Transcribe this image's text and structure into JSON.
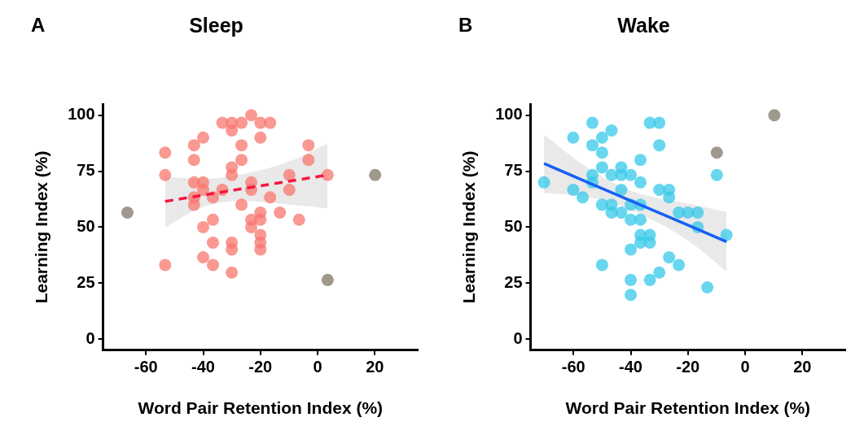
{
  "chart_data": [
    {
      "type": "scatter",
      "title": "Sleep",
      "annotations": [
        "A"
      ],
      "xlabel": "Word Pair Retention Index (%)",
      "ylabel": "Learning Index (%)",
      "xlim": [
        -75,
        35
      ],
      "xticks": [
        -60,
        -40,
        -20,
        0,
        20
      ],
      "ylim": [
        -5,
        105
      ],
      "yticks": [
        0,
        25,
        50,
        75,
        100
      ],
      "grid": false,
      "legend": false,
      "series": [
        {
          "marker": "circle",
          "color": "#f8766d",
          "x": [
            -53.3,
            -53.3,
            -53.3,
            -43.2,
            -43.2,
            -43.2,
            -43.2,
            -43.2,
            -40,
            -40,
            -40,
            -40,
            -40,
            -36.6,
            -36.6,
            -36.6,
            -36.6,
            -33.3,
            -33.3,
            -30,
            -30,
            -30,
            -30,
            -30,
            -30,
            -30,
            -26.6,
            -26.6,
            -26.6,
            -26.6,
            -23.2,
            -23.2,
            -23.2,
            -23.2,
            -23.2,
            -20,
            -20,
            -20,
            -20,
            -20,
            -20,
            -20,
            -16.6,
            -16.6,
            -13.2,
            -9.9,
            -9.9,
            -6.5,
            -3.2,
            -3.2,
            3.5
          ],
          "values": [
            83.3,
            73.3,
            33.1,
            86.6,
            80,
            70,
            63.3,
            60,
            90,
            70,
            66.7,
            50,
            36.5,
            63.3,
            53.3,
            43.1,
            33.1,
            96.6,
            66.7,
            96.6,
            93.2,
            76.7,
            73.3,
            43.1,
            40,
            29.7,
            96.6,
            86.6,
            80,
            60,
            100,
            70,
            66.7,
            53.3,
            50,
            96.6,
            90,
            56.5,
            53.3,
            46.5,
            43.1,
            40,
            96.6,
            63.3,
            56.5,
            73.3,
            66.7,
            53.3,
            86.6,
            80,
            73.3
          ]
        },
        {
          "marker": "circle",
          "color": "#7f7566",
          "x": [
            -66.5,
            3.5,
            20.1
          ],
          "values": [
            56.5,
            26.4,
            73.3
          ]
        },
        {
          "type": "line",
          "marker": "none",
          "color": "#f5173f",
          "line_style": "dashed",
          "x": [
            -53.3,
            -40,
            -26.6,
            -10,
            3.5
          ],
          "values": [
            61.5,
            64.3,
            67.1,
            70.5,
            73.3
          ],
          "lower": [
            50,
            59,
            61.8,
            60.1,
            58.4
          ],
          "upper": [
            72.5,
            71.6,
            73.6,
            79.3,
            87.4
          ]
        }
      ]
    },
    {
      "type": "scatter",
      "title": "Wake",
      "annotations": [
        "B"
      ],
      "xlabel": "Word Pair Retention Index (%)",
      "ylabel": "Learning Index (%)",
      "xlim": [
        -75,
        35
      ],
      "xticks": [
        -60,
        -40,
        -20,
        0,
        20
      ],
      "ylim": [
        -5,
        105
      ],
      "yticks": [
        0,
        25,
        50,
        75,
        100
      ],
      "grid": false,
      "legend": false,
      "series": [
        {
          "marker": "circle",
          "color": "#35c8e8",
          "x": [
            -70.3,
            -60.1,
            -60.1,
            -56.8,
            -53.4,
            -53.4,
            -53.4,
            -53.4,
            -50,
            -50,
            -50,
            -50,
            -50,
            -46.7,
            -46.7,
            -46.7,
            -46.7,
            -43.3,
            -43.3,
            -43.3,
            -43.3,
            -40,
            -40,
            -40,
            -40,
            -40,
            -40,
            -36.6,
            -36.6,
            -36.6,
            -36.6,
            -36.6,
            -36.6,
            -33.3,
            -33.3,
            -33.3,
            -33.3,
            -30,
            -30,
            -30,
            -30,
            -26.6,
            -26.6,
            -26.6,
            -23.2,
            -23.2,
            -20,
            -16.6,
            -16.6,
            -13.2,
            -9.9,
            -6.5
          ],
          "values": [
            70,
            90,
            66.7,
            63.3,
            96.6,
            86.6,
            73.3,
            70,
            90,
            83.3,
            76.7,
            60,
            33.1,
            93.2,
            73.3,
            60,
            56.5,
            76.7,
            73.3,
            66.7,
            56.5,
            73.3,
            60,
            53.3,
            40,
            26.4,
            19.7,
            80,
            70,
            60,
            53.3,
            46.5,
            43.1,
            96.6,
            46.5,
            43.1,
            26.4,
            96.6,
            86.6,
            66.7,
            29.7,
            66.7,
            63.3,
            36.5,
            56.5,
            33.1,
            56.5,
            56.5,
            50,
            23.1,
            73.3,
            46.5
          ]
        },
        {
          "marker": "circle",
          "color": "#7f7566",
          "x": [
            -9.9,
            10.2
          ],
          "values": [
            83.3,
            100
          ]
        },
        {
          "type": "line",
          "marker": "none",
          "color": "#1560f5",
          "line_style": "solid",
          "x": [
            -70.3,
            -55,
            -40,
            -20,
            -6.5
          ],
          "values": [
            78.4,
            70,
            61.8,
            50.9,
            43.5
          ],
          "lower": [
            65.2,
            63.5,
            57.8,
            44,
            30.3
          ],
          "upper": [
            91.3,
            76.5,
            66.3,
            60.5,
            56.8
          ]
        }
      ]
    }
  ]
}
